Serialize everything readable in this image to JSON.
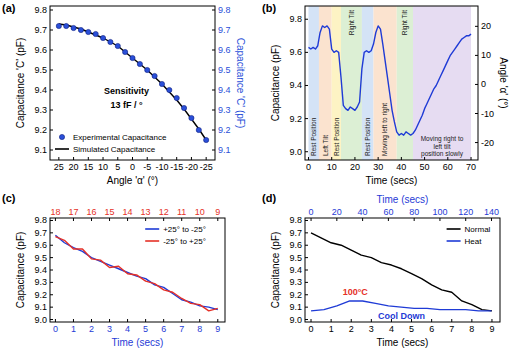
{
  "chart_data": [
    {
      "type": "scatter",
      "title": "(a)",
      "x_label": "Angle 'α' (°)",
      "y_label": "Capacitance 'C' (pF)",
      "y2_label": "Capacitance 'C' (pF)",
      "xlim": [
        28,
        -28
      ],
      "xticks": [
        25,
        20,
        15,
        10,
        5,
        0,
        -5,
        -10,
        -15,
        -20,
        -25
      ],
      "ylim": [
        9.05,
        9.82
      ],
      "yticks": [
        9.1,
        9.2,
        9.3,
        9.4,
        9.5,
        9.6,
        9.7,
        9.8
      ],
      "y2lim": [
        9.05,
        9.82
      ],
      "y2ticks": [
        9.1,
        9.2,
        9.3,
        9.4,
        9.5,
        9.6,
        9.7,
        9.8
      ],
      "series": [
        {
          "name": "Experimental Capacitance",
          "type": "scatter",
          "marker": "circle",
          "color": "#2a4fd8",
          "axis": "y2",
          "x": [
            25,
            22.5,
            20,
            17.5,
            15,
            12.5,
            10,
            7.5,
            5,
            2.5,
            0,
            -2.5,
            -5,
            -7.5,
            -10,
            -12.5,
            -15,
            -17.5,
            -20,
            -22.5,
            -25
          ],
          "values": [
            9.72,
            9.72,
            9.71,
            9.7,
            9.69,
            9.68,
            9.66,
            9.64,
            9.62,
            9.59,
            9.56,
            9.53,
            9.5,
            9.47,
            9.43,
            9.4,
            9.36,
            9.31,
            9.26,
            9.2,
            9.15
          ]
        },
        {
          "name": "Simulated Capacitance",
          "type": "line",
          "color": "#000000",
          "x": [
            25,
            22.5,
            20,
            17.5,
            15,
            12.5,
            10,
            7.5,
            5,
            2.5,
            0,
            -2.5,
            -5,
            -7.5,
            -10,
            -12.5,
            -15,
            -17.5,
            -20,
            -22.5,
            -25
          ],
          "values": [
            9.73,
            9.725,
            9.715,
            9.705,
            9.69,
            9.675,
            9.66,
            9.64,
            9.62,
            9.59,
            9.56,
            9.53,
            9.5,
            9.465,
            9.43,
            9.39,
            9.35,
            9.305,
            9.255,
            9.205,
            9.15
          ]
        }
      ],
      "annotations": [
        {
          "text": "Sensitivity",
          "x": 2,
          "y": 9.38,
          "color": "#000000"
        },
        {
          "text": "13 fF / °",
          "x": 2,
          "y": 9.31,
          "color": "#000000"
        }
      ],
      "legend": "lower left",
      "grid": false
    },
    {
      "type": "line",
      "title": "(b)",
      "x_label": "Time (secs)",
      "y_label": "Capacitance (pF)",
      "y2_label": "Angle 'α' (°)",
      "xlim": [
        -1.5,
        73
      ],
      "xticks": [
        0,
        10,
        20,
        30,
        40,
        50,
        60,
        70
      ],
      "ylim": [
        8.95,
        9.88
      ],
      "yticks": [
        {
          "value": 9,
          "label": "9.0"
        },
        9.2,
        9.4,
        9.6,
        9.8
      ],
      "y2lim": [
        -26,
        27
      ],
      "y2ticks": [
        -20,
        -10,
        0,
        10,
        20
      ],
      "series": [
        {
          "name": "Capacitance",
          "type": "line",
          "color": "#1f3bd6",
          "x": [
            0,
            1,
            2,
            3,
            4,
            5,
            6,
            7,
            8,
            9,
            10,
            11,
            12,
            13,
            14,
            15,
            16,
            17,
            18,
            19,
            20,
            21,
            22,
            23,
            24,
            25,
            26,
            27,
            28,
            29,
            30,
            31,
            32,
            33,
            34,
            35,
            36,
            37,
            38,
            39,
            40,
            41,
            42,
            43,
            44,
            45,
            46,
            47,
            48,
            49,
            50,
            51,
            52,
            53,
            54,
            55,
            56,
            57,
            58,
            59,
            60,
            61,
            62,
            63,
            64,
            65,
            66,
            67,
            68,
            69,
            70
          ],
          "values": [
            9.63,
            9.62,
            9.63,
            9.62,
            9.64,
            9.72,
            9.76,
            9.75,
            9.76,
            9.74,
            9.62,
            9.6,
            9.61,
            9.6,
            9.45,
            9.28,
            9.26,
            9.25,
            9.27,
            9.26,
            9.25,
            9.27,
            9.3,
            9.5,
            9.6,
            9.61,
            9.6,
            9.61,
            9.65,
            9.72,
            9.76,
            9.74,
            9.65,
            9.55,
            9.45,
            9.35,
            9.25,
            9.18,
            9.12,
            9.1,
            9.11,
            9.1,
            9.12,
            9.11,
            9.1,
            9.11,
            9.13,
            9.16,
            9.19,
            9.22,
            9.26,
            9.29,
            9.32,
            9.35,
            9.38,
            9.4,
            9.43,
            9.46,
            9.49,
            9.52,
            9.55,
            9.58,
            9.6,
            9.62,
            9.64,
            9.66,
            9.68,
            9.69,
            9.7,
            9.7,
            9.71
          ]
        }
      ],
      "regions": [
        {
          "label": "Rest Position",
          "start": 0,
          "end": 4.5,
          "color": "#d4e3f6"
        },
        {
          "label": "Left Tilt",
          "start": 4.5,
          "end": 10,
          "color": "#fbe3cf"
        },
        {
          "label": "Rest Position",
          "start": 10,
          "end": 14,
          "color": "#fdf3c4"
        },
        {
          "label": "Right Tilt",
          "start": 14,
          "end": 23,
          "color": "#dcefd4"
        },
        {
          "label": "Rest Position",
          "start": 23,
          "end": 28,
          "color": "#d4e3f6"
        },
        {
          "label": "Moving left to right",
          "start": 28,
          "end": 38,
          "color": "#fbe3cf"
        },
        {
          "label": "Right Tilt",
          "start": 38,
          "end": 45,
          "color": "#dcefd4"
        },
        {
          "label": "Moving right to left tilt position slowly",
          "start": 45,
          "end": 70,
          "color": "#e6dcf2"
        }
      ],
      "grid": false
    },
    {
      "type": "line",
      "title": "(c)",
      "x_label": "Time (secs)",
      "y_label": "Capacitance (pF)",
      "xlim": [
        -0.3,
        9.4
      ],
      "xticks": [
        0,
        1,
        2,
        3,
        4,
        5,
        6,
        7,
        8,
        9
      ],
      "x2lim": [
        18.3,
        8.6
      ],
      "x2ticks": [
        18,
        17,
        16,
        15,
        14,
        13,
        12,
        11,
        10,
        9
      ],
      "ylim": [
        8.98,
        9.82
      ],
      "yticks": [
        {
          "value": 9,
          "label": "9.0"
        },
        9.1,
        9.2,
        9.3,
        9.4,
        9.5,
        9.6,
        9.7,
        9.8
      ],
      "series": [
        {
          "name": "+25° to -25°",
          "type": "line",
          "color": "#1f3bd6",
          "x": [
            0,
            0.5,
            1,
            1.5,
            2,
            2.5,
            3,
            3.5,
            4,
            4.5,
            5,
            5.5,
            6,
            6.5,
            7,
            7.5,
            8,
            8.5,
            9
          ],
          "values": [
            9.68,
            9.62,
            9.58,
            9.55,
            9.5,
            9.47,
            9.44,
            9.41,
            9.38,
            9.35,
            9.33,
            9.28,
            9.26,
            9.21,
            9.16,
            9.14,
            9.11,
            9.1,
            9.08
          ]
        },
        {
          "name": "-25° to +25°",
          "type": "line",
          "color": "#e53127",
          "axis": "x2",
          "x": [
            18,
            17.5,
            17,
            16.5,
            16,
            15.5,
            15,
            14.5,
            14,
            13.5,
            13,
            12.5,
            12,
            11.5,
            11,
            10.5,
            10,
            9.5,
            9
          ],
          "values": [
            9.67,
            9.64,
            9.57,
            9.57,
            9.49,
            9.48,
            9.42,
            9.43,
            9.37,
            9.36,
            9.31,
            9.29,
            9.24,
            9.22,
            9.17,
            9.13,
            9.12,
            9.07,
            9.09
          ]
        }
      ],
      "legend": "upper right",
      "grid": false
    },
    {
      "type": "line",
      "title": "(d)",
      "x_label": "Time (secs)",
      "x2_label": "Time (secs)",
      "y_label": "Capacitance (pF)",
      "xlim": [
        -0.3,
        9.4
      ],
      "xticks": [
        0,
        1,
        2,
        3,
        4,
        5,
        6,
        7,
        8,
        9
      ],
      "x2lim": [
        -4.7,
        146.6
      ],
      "x2ticks": [
        0,
        20,
        40,
        60,
        80,
        100,
        120,
        140
      ],
      "ylim": [
        8.98,
        9.82
      ],
      "yticks": [
        {
          "value": 9,
          "label": "9.0"
        },
        9.1,
        9.2,
        9.3,
        9.4,
        9.5,
        9.6,
        9.7,
        9.8
      ],
      "series": [
        {
          "name": "Normal",
          "type": "line",
          "color": "#000000",
          "x": [
            0,
            0.5,
            1,
            1.5,
            2,
            2.5,
            3,
            3.5,
            4,
            4.5,
            5,
            5.5,
            6,
            6.5,
            7,
            7.5,
            8,
            8.5,
            9
          ],
          "values": [
            9.7,
            9.66,
            9.62,
            9.6,
            9.56,
            9.52,
            9.5,
            9.46,
            9.44,
            9.41,
            9.37,
            9.33,
            9.28,
            9.24,
            9.22,
            9.15,
            9.12,
            9.08,
            9.07
          ]
        },
        {
          "name": "Heat",
          "type": "line",
          "color": "#1f3bd6",
          "axis": "x2",
          "x": [
            0,
            10,
            20,
            30,
            40,
            50,
            60,
            70,
            80,
            90,
            100,
            110,
            120,
            130,
            140
          ],
          "values": [
            9.07,
            9.08,
            9.11,
            9.15,
            9.15,
            9.13,
            9.11,
            9.1,
            9.09,
            9.09,
            9.08,
            9.08,
            9.08,
            9.07,
            9.07
          ]
        }
      ],
      "annotations": [
        {
          "text": "100°C",
          "x": 2.2,
          "y": 9.2,
          "color": "#e53127"
        },
        {
          "text": "Cool Down",
          "x": 4.5,
          "y": 9.005,
          "color": "#1f3bd6"
        }
      ],
      "legend": "upper right",
      "grid": false
    }
  ]
}
